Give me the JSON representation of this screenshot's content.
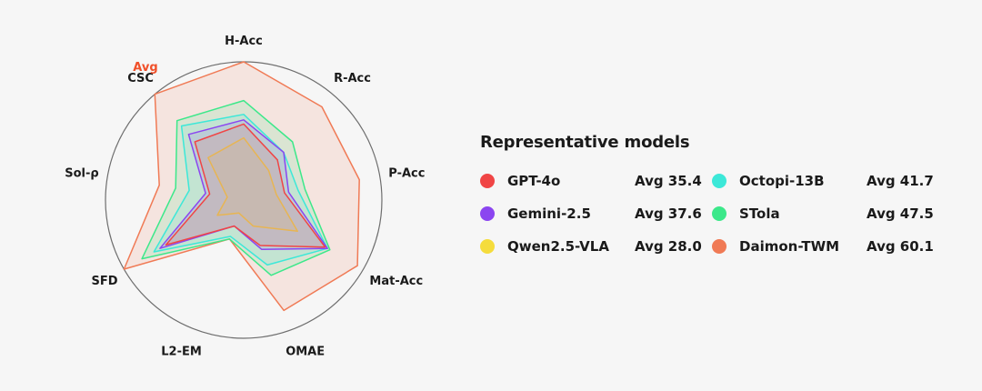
{
  "chart_data": {
    "type": "radar",
    "title": "",
    "axes": [
      "H-Acc",
      "R-Acc",
      "P-Acc",
      "Mat-Acc",
      "OMAE",
      "L2-EM",
      "SFD",
      "Sol-ρ",
      "CSC"
    ],
    "annotation": "Avg",
    "range": [
      0,
      100
    ],
    "series": [
      {
        "name": "GPT-4o",
        "avg_label": "Avg 35.4",
        "color": "#f04545",
        "values": [
          55,
          38,
          30,
          68,
          35,
          20,
          65,
          25,
          55
        ]
      },
      {
        "name": "Gemini-2.5",
        "avg_label": "Avg 37.6",
        "color": "#8b45f0",
        "values": [
          58,
          45,
          33,
          70,
          38,
          20,
          70,
          28,
          62
        ]
      },
      {
        "name": "Qwen2.5-VLA",
        "avg_label": "Avg 28.0",
        "color": "#f5dc3c",
        "values": [
          45,
          28,
          24,
          45,
          20,
          10,
          22,
          12,
          40
        ]
      },
      {
        "name": "Octopi-13B",
        "avg_label": "Avg 41.7",
        "color": "#3ce8d8",
        "values": [
          62,
          45,
          40,
          70,
          50,
          28,
          75,
          40,
          70
        ]
      },
      {
        "name": "STola",
        "avg_label": "Avg 47.5",
        "color": "#3ce88a",
        "values": [
          72,
          55,
          45,
          72,
          58,
          30,
          85,
          50,
          75
        ]
      },
      {
        "name": "Daimon-TWM",
        "avg_label": "Avg 60.1",
        "color": "#f07a55",
        "values": [
          100,
          88,
          85,
          95,
          85,
          30,
          100,
          62,
          100
        ]
      }
    ]
  },
  "legend": {
    "title": "Representative models"
  }
}
